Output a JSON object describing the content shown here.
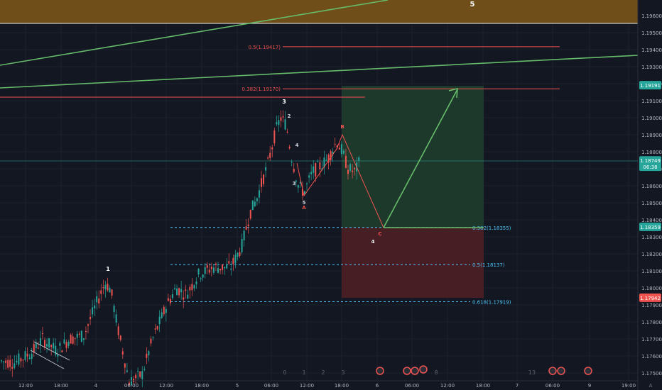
{
  "chart_data": {
    "type": "candlestick",
    "price_axis": {
      "ylim": [
        1.1745,
        1.1972
      ],
      "ticks": [
        "1.19600",
        "1.19500",
        "1.19400",
        "1.19300",
        "1.19200",
        "1.19100",
        "1.19000",
        "1.18900",
        "1.18800",
        "1.18700",
        "1.18600",
        "1.18500",
        "1.18400",
        "1.18300",
        "1.18200",
        "1.18100",
        "1.18000",
        "1.17900",
        "1.17800",
        "1.17700",
        "1.17600",
        "1.17500"
      ],
      "tick_values": [
        1.196,
        1.195,
        1.194,
        1.193,
        1.192,
        1.191,
        1.19,
        1.189,
        1.188,
        1.187,
        1.186,
        1.185,
        1.184,
        1.183,
        1.182,
        1.181,
        1.18,
        1.179,
        1.178,
        1.177,
        1.176,
        1.175
      ]
    },
    "time_axis": {
      "labels": [
        "12:00",
        "18:00",
        "4",
        "06:00",
        "12:00",
        "18:00",
        "5",
        "06:00",
        "12:00",
        "18:00",
        "6",
        "06:00",
        "12:00",
        "18:00",
        "7",
        "06:00",
        "9",
        "19:00"
      ]
    },
    "price_badges": [
      {
        "text": "1.19191",
        "value": 1.19191,
        "color": "#26a69a"
      },
      {
        "text": "1.18749",
        "value": 1.18749,
        "color": "#26a69a"
      },
      {
        "text": "06:38",
        "value": 1.18712,
        "color": "#26a69a"
      },
      {
        "text": "1.18359",
        "value": 1.18359,
        "color": "#26a69a"
      },
      {
        "text": "1.17942",
        "value": 1.17942,
        "color": "#ef5350"
      }
    ],
    "fib_levels": [
      {
        "label": "0.5(1.19417)",
        "value": 1.19417,
        "color": "#ef5350",
        "style": "solid"
      },
      {
        "label": "0.382(1.19170)",
        "value": 1.1917,
        "color": "#ef5350",
        "style": "solid"
      },
      {
        "label": "0.382(1.18355)",
        "value": 1.18355,
        "color": "#4fc3f7",
        "style": "dashed"
      },
      {
        "label": "0.5(1.18137)",
        "value": 1.18137,
        "color": "#4fc3f7",
        "style": "dashed"
      },
      {
        "label": "0.618(1.17919)",
        "value": 1.17919,
        "color": "#4fc3f7",
        "style": "dashed"
      }
    ],
    "wave_labels": [
      {
        "text": "5",
        "color": "#ffffff"
      },
      {
        "text": "1",
        "color": "#ffffff"
      },
      {
        "text": "3",
        "color": "#ffffff"
      },
      {
        "text": "2",
        "color": "#d1d4dc"
      },
      {
        "text": "4",
        "color": "#d1d4dc"
      },
      {
        "text": "3",
        "color": "#d1d4dc"
      },
      {
        "text": "5",
        "color": "#d1d4dc"
      },
      {
        "text": "A",
        "color": "#ef5350"
      },
      {
        "text": "B",
        "color": "#ef5350"
      },
      {
        "text": "C",
        "color": "#ef5350"
      },
      {
        "text": "4",
        "color": "#ffffff"
      }
    ],
    "bottom_counters": [
      "0",
      "1",
      "2",
      "3",
      "8",
      "13"
    ],
    "axis_corner": "A",
    "colors": {
      "up": "#26a69a",
      "down": "#ef5350",
      "background": "#131722",
      "target_zone": "#1e3b2c",
      "stop_zone": "#4a1f25",
      "resistance_zone": "#7a5418"
    }
  }
}
